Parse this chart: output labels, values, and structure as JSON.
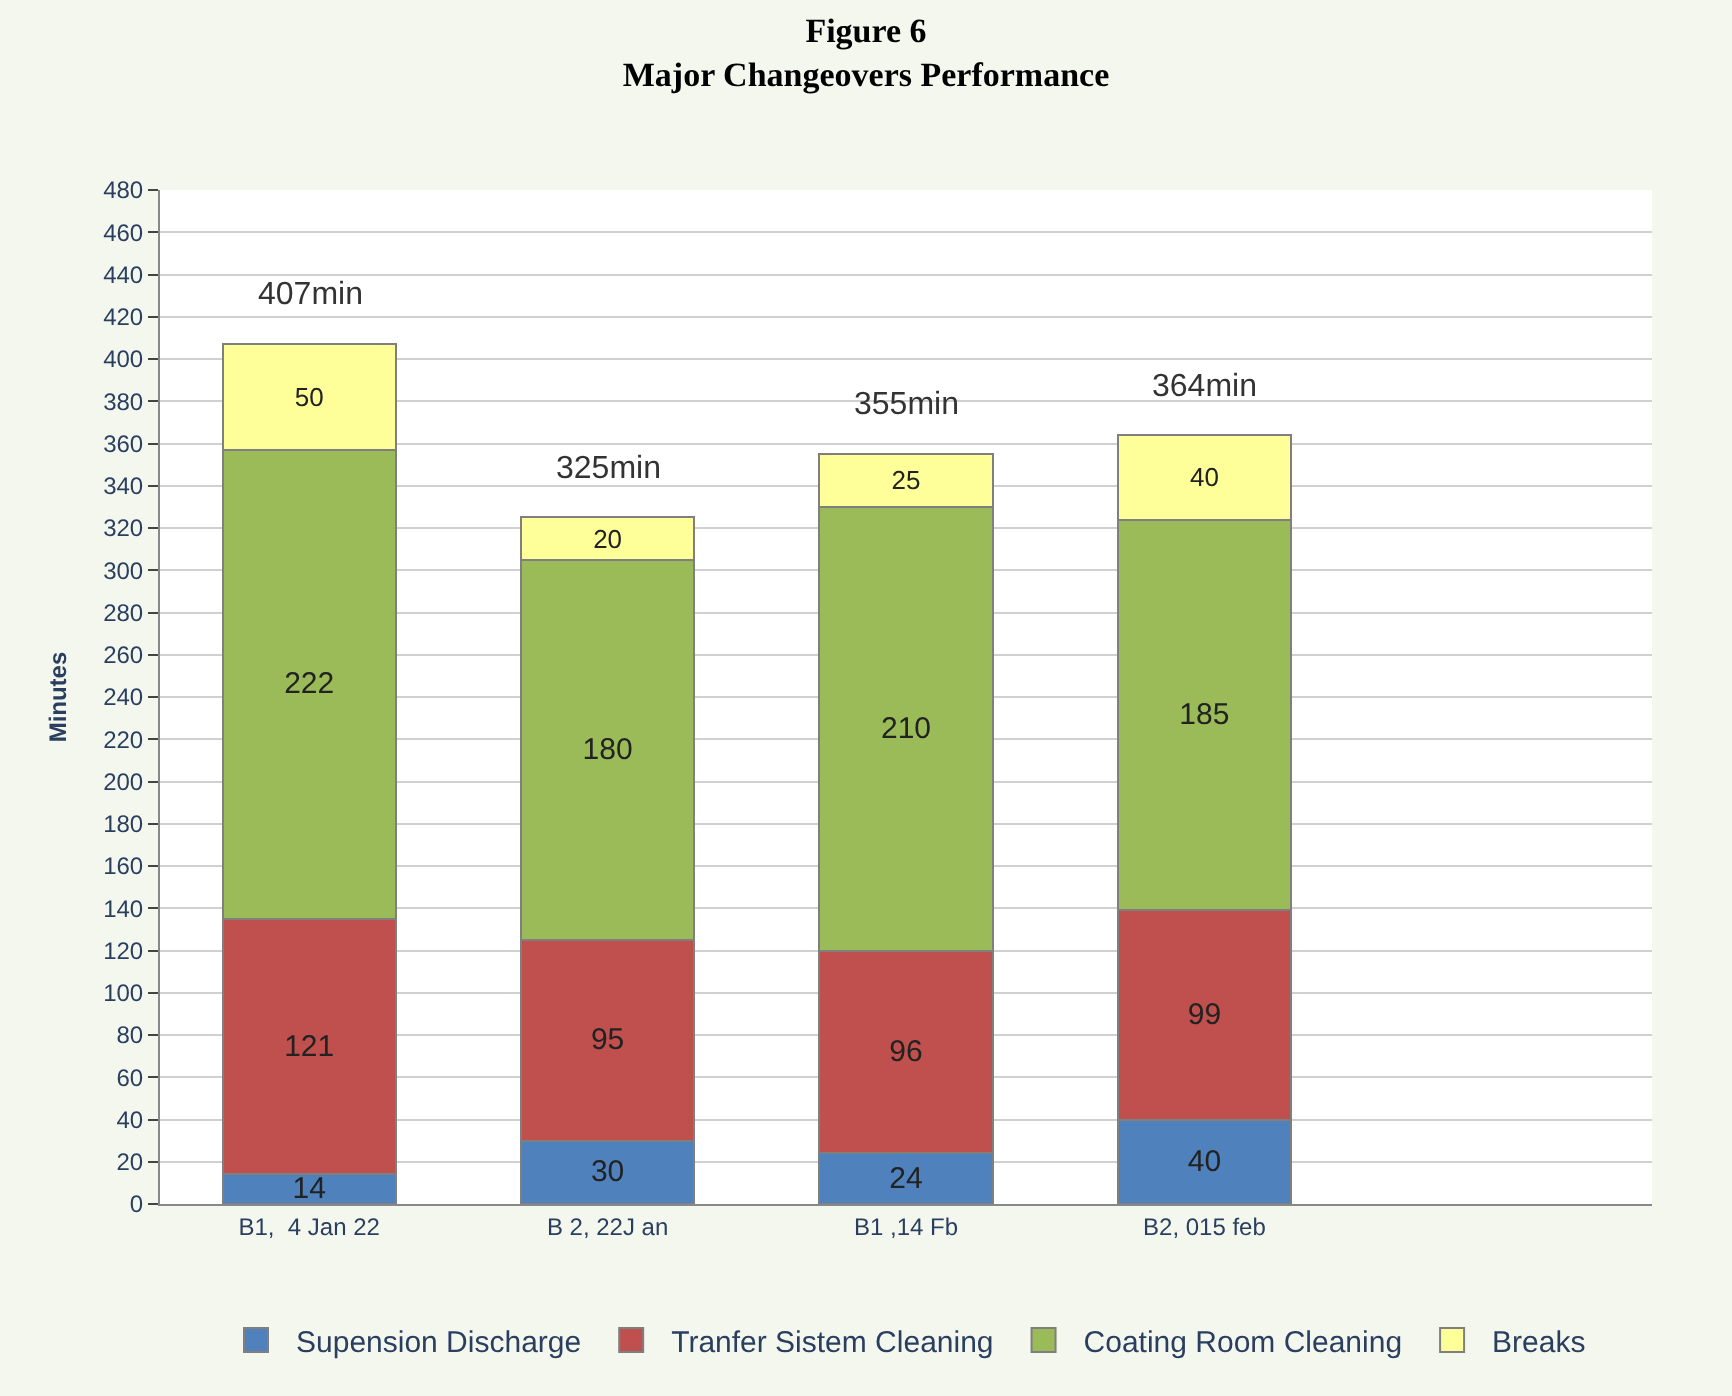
{
  "chart_data": {
    "type": "bar",
    "stacked": true,
    "title": "Figure 6",
    "subtitle": "Major Changeovers Performance",
    "ylabel": "Minutes",
    "categories": [
      "B1,  4 Jan 22",
      "B 2, 22J an",
      "B1 ,14 Fb",
      "B2, 015 feb",
      null
    ],
    "series": [
      {
        "name": "Supension Discharge",
        "color": "#4f81bd",
        "values": [
          14,
          30,
          24,
          40,
          null
        ]
      },
      {
        "name": "Tranfer Sistem Cleaning",
        "color": "#c0504d",
        "values": [
          121,
          95,
          96,
          99,
          null
        ]
      },
      {
        "name": "Coating Room Cleaning",
        "color": "#9bbb59",
        "values": [
          222,
          180,
          210,
          185,
          null
        ]
      },
      {
        "name": "Breaks",
        "color": "#ffff99",
        "values": [
          50,
          20,
          25,
          40,
          null
        ]
      }
    ],
    "totals": [
      "407min",
      "325min",
      "355min",
      "364min",
      null
    ],
    "data_labels": true,
    "ylim": [
      0,
      480
    ],
    "yticks": [
      0,
      20,
      40,
      60,
      80,
      100,
      120,
      140,
      160,
      180,
      200,
      220,
      240,
      260,
      280,
      300,
      320,
      340,
      360,
      380,
      400,
      420,
      440,
      460,
      480
    ],
    "grid": "y",
    "legend": "bottom"
  }
}
